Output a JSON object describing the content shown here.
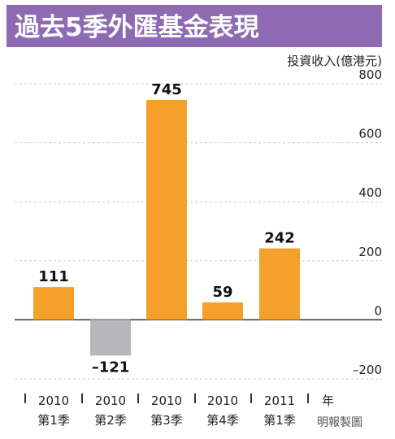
{
  "chart_data": {
    "type": "bar",
    "title": "過去5季外匯基金表現",
    "ylabel": "投資收入(億港元)",
    "xlabel": "年",
    "credit": "明報製圖",
    "categories": [
      {
        "year": "2010",
        "quarter": "第1季"
      },
      {
        "year": "2010",
        "quarter": "第2季"
      },
      {
        "year": "2010",
        "quarter": "第3季"
      },
      {
        "year": "2010",
        "quarter": "第4季"
      },
      {
        "year": "2011",
        "quarter": "第1季"
      }
    ],
    "values": [
      111,
      -121,
      745,
      59,
      242
    ],
    "value_labels": [
      "111",
      "–121",
      "745",
      "59",
      "242"
    ],
    "ylim": [
      -200,
      800
    ],
    "yticks": [
      800,
      600,
      400,
      200,
      0,
      -200
    ],
    "ytick_labels": [
      "800",
      "600",
      "400",
      "200",
      "0",
      "–200"
    ],
    "grid": true,
    "colors": {
      "positive": "#f5a02a",
      "negative": "#b8b8bc",
      "title_bg": "#8e6ab3",
      "title_text": "#ffffff",
      "grid": "#c8c8c8",
      "axis": "#333333"
    }
  }
}
